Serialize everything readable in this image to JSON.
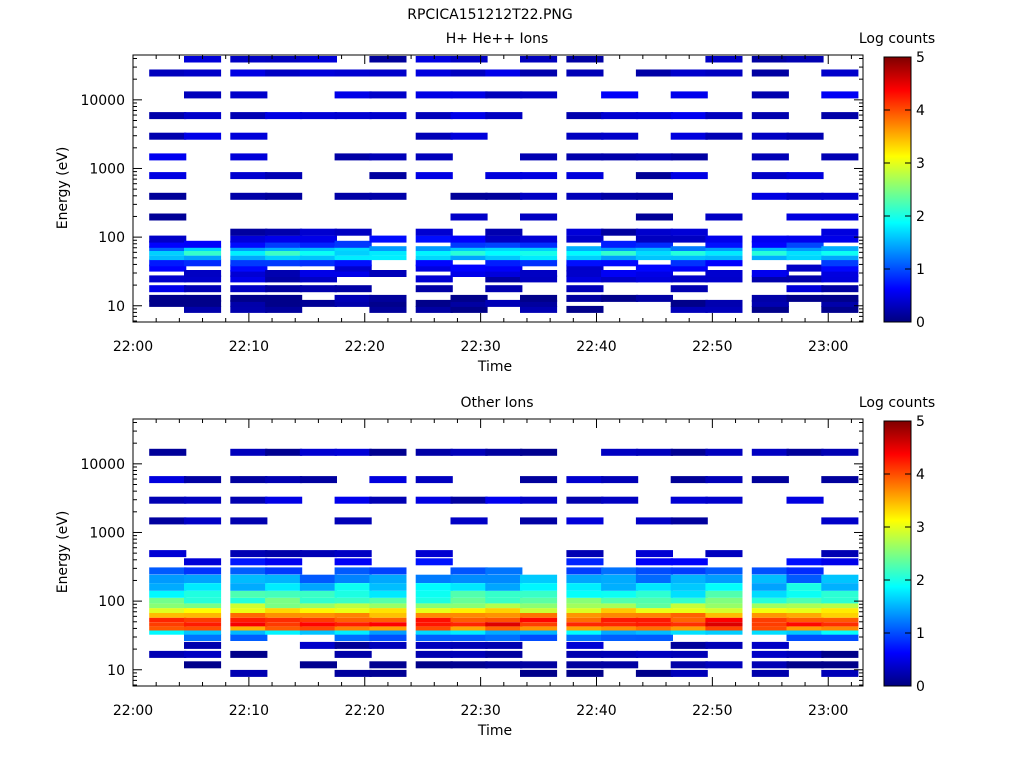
{
  "figure": {
    "title": "RPCICA151212T22.PNG"
  },
  "chart_data": [
    {
      "type": "heatmap",
      "title": "H+ He++ Ions",
      "xlabel": "Time",
      "ylabel": "Energy (eV)",
      "x_ticks": [
        "22:00",
        "22:10",
        "22:20",
        "22:30",
        "22:40",
        "22:50",
        "23:00"
      ],
      "x_range": [
        "22:00",
        "23:03"
      ],
      "y_ticks": [
        "10",
        "100",
        "1000",
        "10000"
      ],
      "y_scale": "log",
      "y_range": [
        5.8,
        45000
      ],
      "colorbar": {
        "label": "Log counts",
        "range": [
          0,
          5
        ],
        "ticks": [
          "0",
          "1",
          "2",
          "3",
          "4",
          "5"
        ],
        "colormap": "jet"
      },
      "time_bins": [
        "22:03",
        "22:06",
        "22:10",
        "22:13",
        "22:16",
        "22:19",
        "22:22",
        "22:26",
        "22:29",
        "22:32",
        "22:35",
        "22:39",
        "22:42",
        "22:45",
        "22:48",
        "22:51",
        "22:55",
        "22:58",
        "23:01"
      ],
      "energy_profile": [
        {
          "energy": 9,
          "log_counts": 0.1
        },
        {
          "energy": 11,
          "log_counts": 0.1
        },
        {
          "energy": 13,
          "log_counts": 0.1
        },
        {
          "energy": 18,
          "log_counts": 0.35
        },
        {
          "energy": 25,
          "log_counts": 0.35
        },
        {
          "energy": 30,
          "log_counts": 0.4
        },
        {
          "energy": 36,
          "log_counts": 0.5
        },
        {
          "energy": 43,
          "log_counts": 0.8
        },
        {
          "energy": 50,
          "log_counts": 1.5
        },
        {
          "energy": 58,
          "log_counts": 1.9
        },
        {
          "energy": 68,
          "log_counts": 1.4
        },
        {
          "energy": 80,
          "log_counts": 0.8
        },
        {
          "energy": 95,
          "log_counts": 0.5
        },
        {
          "energy": 120,
          "log_counts": 0.3
        },
        {
          "energy": 200,
          "log_counts": 0.3
        },
        {
          "energy": 400,
          "log_counts": 0.3
        },
        {
          "energy": 800,
          "log_counts": 0.3
        },
        {
          "energy": 1500,
          "log_counts": 0.35
        },
        {
          "energy": 3000,
          "log_counts": 0.35
        },
        {
          "energy": 6000,
          "log_counts": 0.4
        },
        {
          "energy": 12000,
          "log_counts": 0.4
        },
        {
          "energy": 25000,
          "log_counts": 0.35
        },
        {
          "energy": 40000,
          "log_counts": 0.3
        }
      ],
      "notes": "Sparse blue (low-count) horizontal segments across all energies above ~100 eV; brighter cyan/green band at 40-80 eV."
    },
    {
      "type": "heatmap",
      "title": "Other Ions",
      "xlabel": "Time",
      "ylabel": "Energy (eV)",
      "x_ticks": [
        "22:00",
        "22:10",
        "22:20",
        "22:30",
        "22:40",
        "22:50",
        "23:00"
      ],
      "x_range": [
        "22:00",
        "23:03"
      ],
      "y_ticks": [
        "10",
        "100",
        "1000",
        "10000"
      ],
      "y_scale": "log",
      "y_range": [
        5.8,
        45000
      ],
      "colorbar": {
        "label": "Log counts",
        "range": [
          0,
          5
        ],
        "ticks": [
          "0",
          "1",
          "2",
          "3",
          "4",
          "5"
        ],
        "colormap": "jet"
      },
      "time_bins": [
        "22:03",
        "22:06",
        "22:10",
        "22:13",
        "22:16",
        "22:19",
        "22:22",
        "22:26",
        "22:29",
        "22:32",
        "22:35",
        "22:39",
        "22:42",
        "22:45",
        "22:48",
        "22:51",
        "22:55",
        "22:58",
        "23:01"
      ],
      "energy_profile": [
        {
          "energy": 9,
          "log_counts": 0.1
        },
        {
          "energy": 12,
          "log_counts": 0.1
        },
        {
          "energy": 17,
          "log_counts": 0.15
        },
        {
          "energy": 23,
          "log_counts": 0.3
        },
        {
          "energy": 30,
          "log_counts": 1.0
        },
        {
          "energy": 35,
          "log_counts": 1.6
        },
        {
          "energy": 40,
          "log_counts": 3.8
        },
        {
          "energy": 46,
          "log_counts": 4.3
        },
        {
          "energy": 53,
          "log_counts": 4.1
        },
        {
          "energy": 62,
          "log_counts": 3.6
        },
        {
          "energy": 73,
          "log_counts": 3.1
        },
        {
          "energy": 86,
          "log_counts": 2.6
        },
        {
          "energy": 100,
          "log_counts": 2.3
        },
        {
          "energy": 125,
          "log_counts": 2.0
        },
        {
          "energy": 160,
          "log_counts": 1.7
        },
        {
          "energy": 210,
          "log_counts": 1.35
        },
        {
          "energy": 280,
          "log_counts": 1.0
        },
        {
          "energy": 380,
          "log_counts": 0.6
        },
        {
          "energy": 500,
          "log_counts": 0.3
        },
        {
          "energy": 1500,
          "log_counts": 0.3
        },
        {
          "energy": 3000,
          "log_counts": 0.35
        },
        {
          "energy": 6000,
          "log_counts": 0.3
        },
        {
          "energy": 15000,
          "log_counts": 0.25
        }
      ],
      "notes": "Dense cyan-to-red band between ~30 and ~500 eV peaking (red, ~4-4.3) near 40-60 eV; sparse dark-blue segments elsewhere."
    }
  ]
}
